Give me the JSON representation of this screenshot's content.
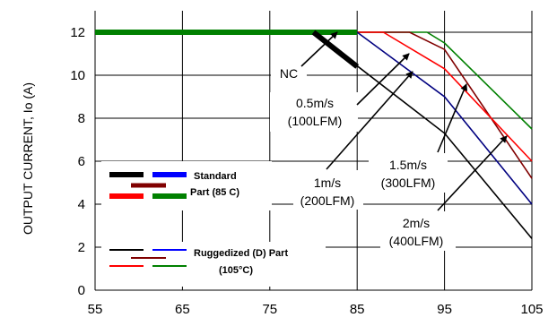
{
  "chart_data": {
    "type": "line",
    "xlabel": "",
    "ylabel": "OUTPUT CURRENT, Io  (A)",
    "xlim": [
      55,
      105
    ],
    "ylim": [
      0,
      13
    ],
    "x_ticks": [
      55,
      65,
      75,
      85,
      95,
      105
    ],
    "y_ticks": [
      0,
      2,
      4,
      6,
      8,
      10,
      12
    ],
    "grid": true,
    "series": [
      {
        "key": "nc",
        "color": "#000000",
        "x": [
          55,
          80,
          95,
          105
        ],
        "y": [
          12,
          12,
          7.3,
          2.4
        ]
      },
      {
        "key": "v05",
        "color": "#000080",
        "x": [
          55,
          85,
          95,
          105
        ],
        "y": [
          12,
          12,
          9,
          4
        ]
      },
      {
        "key": "v1",
        "color": "#ff0000",
        "x": [
          55,
          88,
          95,
          105
        ],
        "y": [
          12,
          12,
          10.3,
          6
        ]
      },
      {
        "key": "v15",
        "color": "#800000",
        "x": [
          55,
          91,
          95,
          105
        ],
        "y": [
          12,
          12,
          11.2,
          5.2
        ]
      },
      {
        "key": "v2",
        "color": "#008000",
        "x": [
          55,
          93,
          95,
          105
        ],
        "y": [
          12,
          12,
          11.5,
          7.5
        ]
      }
    ],
    "overlay_bold": {
      "color": "#000000",
      "x": [
        80,
        85
      ],
      "y": [
        12,
        10.4
      ]
    },
    "green_flat": {
      "color": "#008000",
      "x": [
        55,
        85
      ],
      "y": [
        12,
        12
      ]
    },
    "annotations": [
      {
        "key": "nc",
        "lines": [
          "NC"
        ]
      },
      {
        "key": "v05",
        "lines": [
          "0.5m/s",
          "(100LFM)"
        ]
      },
      {
        "key": "v1",
        "lines": [
          "1m/s",
          "(200LFM)"
        ]
      },
      {
        "key": "v15",
        "lines": [
          "1.5m/s",
          "(300LFM)"
        ]
      },
      {
        "key": "v2",
        "lines": [
          "2m/s",
          "(400LFM)"
        ]
      }
    ],
    "legends": [
      {
        "key": "standard",
        "lines": [
          "Standard",
          "Part (85 C)"
        ]
      },
      {
        "key": "ruggedized",
        "lines": [
          "Ruggedized (D) Part",
          "(105°C)"
        ]
      }
    ]
  }
}
